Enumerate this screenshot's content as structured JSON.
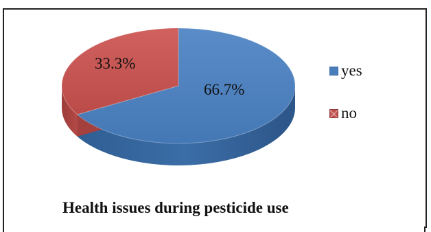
{
  "chart_data": {
    "type": "pie",
    "title": "Health issues during pesticide use",
    "categories": [
      "yes",
      "no"
    ],
    "values": [
      66.7,
      33.3
    ],
    "data_labels": [
      "66.7%",
      "33.3%"
    ],
    "colors": [
      "#4a7ebb",
      "#c0504d"
    ],
    "style": "3d-pie",
    "legend_position": "right"
  }
}
